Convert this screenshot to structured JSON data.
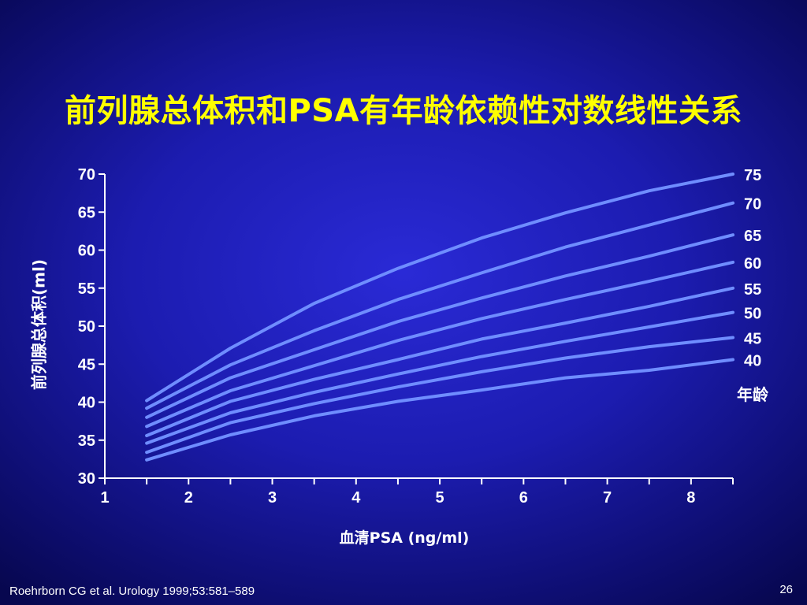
{
  "slide": {
    "title": "前列腺总体积和PSA有年龄依赖性对数线性关系",
    "citation": "Roehrborn CG et al. Urology 1999;53:581–589",
    "page_number": "26"
  },
  "colors": {
    "background": "#1c1cb0",
    "title": "#ffff00",
    "line": "#6f8dff",
    "axis": "#ffffff"
  },
  "chart_data": {
    "type": "line",
    "title": "",
    "xlabel": "血清PSA (ng/ml)",
    "ylabel": "前列腺总体积(ml)",
    "xlim": [
      1,
      8.5
    ],
    "ylim": [
      30,
      70
    ],
    "xticks": [
      1,
      2,
      3,
      4,
      5,
      6,
      7,
      8
    ],
    "yticks": [
      30,
      35,
      40,
      45,
      50,
      55,
      60,
      65,
      70
    ],
    "grid": false,
    "legend_title": "年龄",
    "legend_placement": "right",
    "x": [
      1.5,
      2.5,
      3.5,
      4.5,
      5.5,
      6.5,
      7.5,
      8.5
    ],
    "series": [
      {
        "name": "75",
        "values": [
          40.2,
          47.1,
          53.0,
          57.6,
          61.6,
          64.9,
          67.8,
          70.0
        ]
      },
      {
        "name": "70",
        "values": [
          39.2,
          44.9,
          49.4,
          53.5,
          57.0,
          60.4,
          63.3,
          66.2
        ]
      },
      {
        "name": "65",
        "values": [
          38.0,
          43.2,
          46.9,
          50.6,
          53.7,
          56.6,
          59.2,
          62.0
        ]
      },
      {
        "name": "60",
        "values": [
          36.8,
          41.5,
          44.8,
          48.1,
          51.0,
          53.5,
          55.9,
          58.4
        ]
      },
      {
        "name": "55",
        "values": [
          35.6,
          40.1,
          43.0,
          45.6,
          48.3,
          50.4,
          52.6,
          55.0
        ]
      },
      {
        "name": "50",
        "values": [
          34.6,
          38.6,
          41.3,
          43.7,
          46.0,
          48.0,
          49.9,
          51.8
        ]
      },
      {
        "name": "45",
        "values": [
          33.4,
          37.3,
          39.8,
          42.0,
          44.0,
          45.8,
          47.3,
          48.5
        ]
      },
      {
        "name": "40",
        "values": [
          32.4,
          35.7,
          38.2,
          40.1,
          41.6,
          43.2,
          44.2,
          45.6
        ]
      }
    ]
  }
}
